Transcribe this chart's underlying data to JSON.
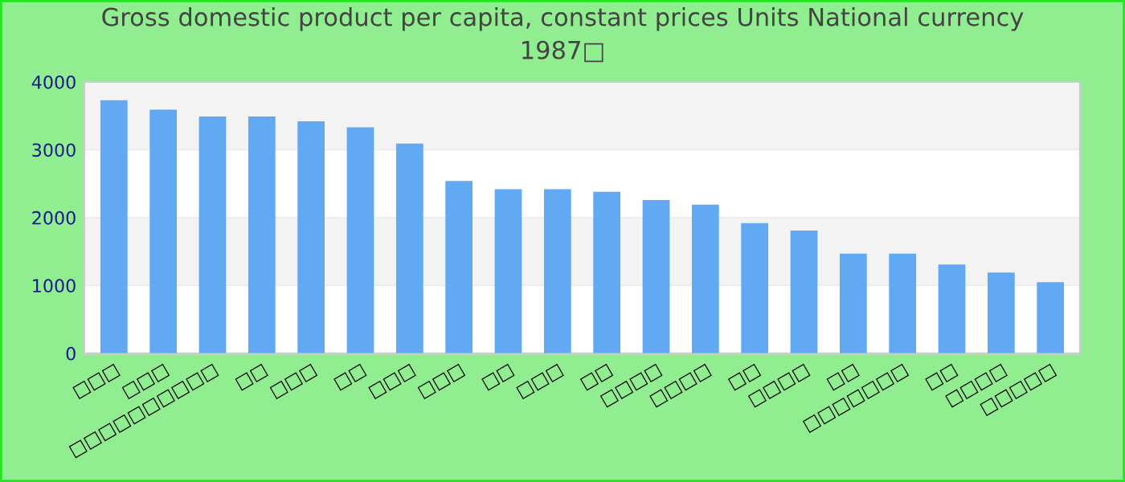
{
  "chart_data": {
    "type": "bar",
    "title": "Gross domestic product per capita, constant prices Units National currency\n1987□",
    "categories": [
      "□□□",
      "□□□",
      "□□□□□□□□□□",
      "□□",
      "□□□",
      "□□",
      "□□□",
      "□□□",
      "□□",
      "□□□",
      "□□",
      "□□□□",
      "□□□□",
      "□□",
      "□□□□",
      "□□",
      "□□□□□□□",
      "□□",
      "□□□□",
      "□□□□□"
    ],
    "values": [
      3730,
      3590,
      3490,
      3490,
      3420,
      3330,
      3090,
      2540,
      2420,
      2420,
      2380,
      2260,
      2190,
      1920,
      1810,
      1470,
      1470,
      1310,
      1190,
      1050
    ],
    "color": "#62a9f4",
    "ylim": [
      0,
      4000
    ],
    "yticks": [
      0,
      1000,
      2000,
      3000,
      4000
    ],
    "grid": "y",
    "legend": false
  }
}
